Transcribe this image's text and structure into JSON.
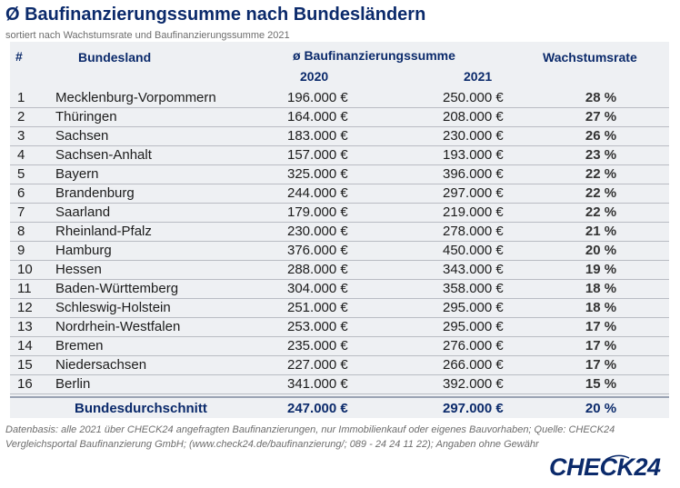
{
  "title": "Ø Baufinanzierungssumme nach Bundesländern",
  "subtitle": "sortiert nach Wachstumsrate und Baufinanzierungssumme 2021",
  "headers": {
    "num": "#",
    "land": "Bundesland",
    "sum": "ø Baufinanzierungssumme",
    "y2020": "2020",
    "y2021": "2021",
    "growth": "Wachstumsrate"
  },
  "rows": [
    {
      "num": "1",
      "land": "Mecklenburg-Vorpommern",
      "v2020": "196.000 €",
      "v2021": "250.000 €",
      "growth": "28 %"
    },
    {
      "num": "2",
      "land": "Thüringen",
      "v2020": "164.000 €",
      "v2021": "208.000 €",
      "growth": "27 %"
    },
    {
      "num": "3",
      "land": "Sachsen",
      "v2020": "183.000 €",
      "v2021": "230.000 €",
      "growth": "26 %"
    },
    {
      "num": "4",
      "land": "Sachsen-Anhalt",
      "v2020": "157.000 €",
      "v2021": "193.000 €",
      "growth": "23 %"
    },
    {
      "num": "5",
      "land": "Bayern",
      "v2020": "325.000 €",
      "v2021": "396.000 €",
      "growth": "22 %"
    },
    {
      "num": "6",
      "land": "Brandenburg",
      "v2020": "244.000 €",
      "v2021": "297.000 €",
      "growth": "22 %"
    },
    {
      "num": "7",
      "land": "Saarland",
      "v2020": "179.000 €",
      "v2021": "219.000 €",
      "growth": "22 %"
    },
    {
      "num": "8",
      "land": "Rheinland-Pfalz",
      "v2020": "230.000 €",
      "v2021": "278.000 €",
      "growth": "21 %"
    },
    {
      "num": "9",
      "land": "Hamburg",
      "v2020": "376.000 €",
      "v2021": "450.000 €",
      "growth": "20 %"
    },
    {
      "num": "10",
      "land": "Hessen",
      "v2020": "288.000 €",
      "v2021": "343.000 €",
      "growth": "19 %"
    },
    {
      "num": "11",
      "land": "Baden-Württemberg",
      "v2020": "304.000 €",
      "v2021": "358.000 €",
      "growth": "18 %"
    },
    {
      "num": "12",
      "land": "Schleswig-Holstein",
      "v2020": "251.000 €",
      "v2021": "295.000 €",
      "growth": "18 %"
    },
    {
      "num": "13",
      "land": "Nordrhein-Westfalen",
      "v2020": "253.000 €",
      "v2021": "295.000 €",
      "growth": "17 %"
    },
    {
      "num": "14",
      "land": "Bremen",
      "v2020": "235.000 €",
      "v2021": "276.000 €",
      "growth": "17 %"
    },
    {
      "num": "15",
      "land": "Niedersachsen",
      "v2020": "227.000 €",
      "v2021": "266.000 €",
      "growth": "17 %"
    },
    {
      "num": "16",
      "land": "Berlin",
      "v2020": "341.000 €",
      "v2021": "392.000 €",
      "growth": "15 %"
    }
  ],
  "average": {
    "land": "Bundesdurchschnitt",
    "v2020": "247.000 €",
    "v2021": "297.000 €",
    "growth": "20 %"
  },
  "footnote": {
    "line1": "Datenbasis: alle 2021 über CHECK24 angefragten Baufinanzierungen,  nur Immobilienkauf oder eigenes Bauvorhaben; Quelle: CHECK24",
    "line2": "Vergleichsportal Baufinanzierung GmbH; (www.check24.de/baufinanzierung/; 089 - 24 24 11 22); Angaben ohne Gewähr"
  },
  "logo": "CHECK24",
  "colors": {
    "brand": "#0b2a6b",
    "table_bg": "#eef0f3"
  }
}
